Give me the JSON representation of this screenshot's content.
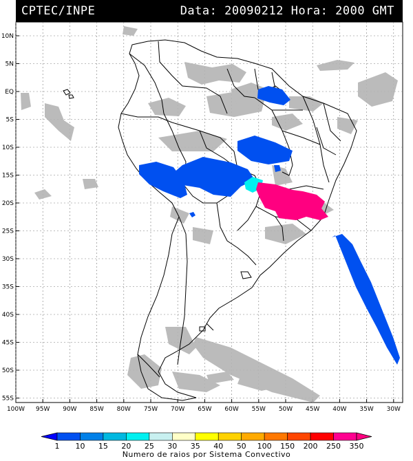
{
  "header": {
    "source": "CPTEC/INPE",
    "datetime": "Data: 20090212 Hora: 2000 GMT"
  },
  "map": {
    "lat_labels": [
      "10N",
      "5N",
      "EQ",
      "5S",
      "10S",
      "15S",
      "20S",
      "25S",
      "30S",
      "35S",
      "40S",
      "45S",
      "50S",
      "55S"
    ],
    "lon_labels": [
      "100W",
      "95W",
      "90W",
      "85W",
      "80W",
      "75W",
      "70W",
      "65W",
      "60W",
      "55W",
      "50W",
      "45W",
      "40W",
      "35W",
      "30W"
    ],
    "colors": {
      "cloud": "#b4b4b4",
      "land_border": "#000000",
      "grid": "#7a7a7a"
    }
  },
  "legend": {
    "labels": [
      "1",
      "10",
      "15",
      "20",
      "25",
      "30",
      "35",
      "40",
      "50",
      "100",
      "150",
      "200",
      "250",
      "350"
    ],
    "colors": [
      "#0000ff",
      "#0050f0",
      "#0080e8",
      "#00b8e0",
      "#00f0f0",
      "#c8f0f0",
      "#ffffc8",
      "#ffff00",
      "#ffd200",
      "#ffaa00",
      "#ff7800",
      "#ff4600",
      "#ff0000",
      "#ff0090",
      "#ff0080"
    ],
    "caption": "Numero de raios por Sistema Convectivo"
  }
}
